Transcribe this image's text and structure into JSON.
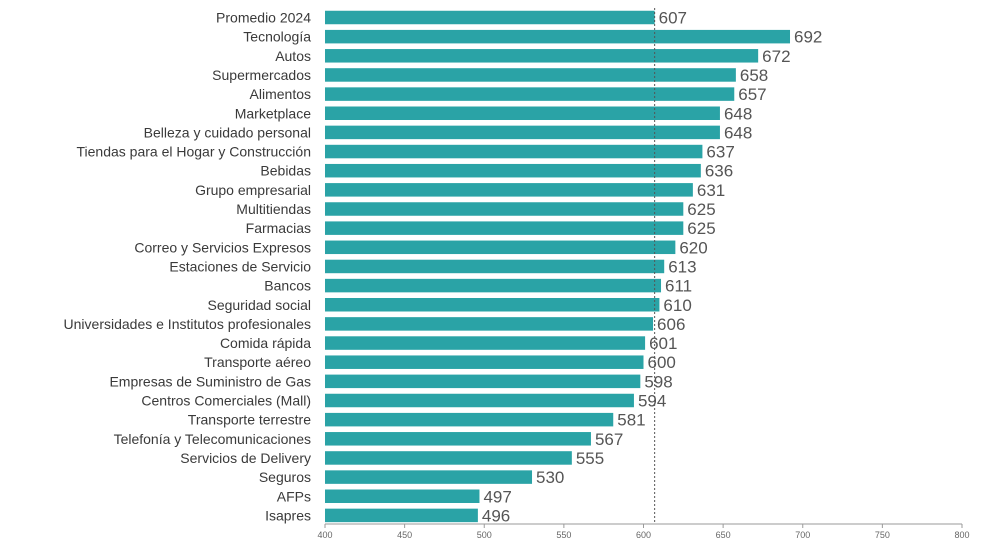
{
  "chart_data": {
    "type": "bar",
    "orientation": "horizontal",
    "categories": [
      "Promedio 2024",
      "Tecnología",
      "Autos",
      "Supermercados",
      "Alimentos",
      "Marketplace",
      "Belleza y cuidado personal",
      "Tiendas para el Hogar y Construcción",
      "Bebidas",
      "Grupo empresarial",
      "Multitiendas",
      "Farmacias",
      "Correo y Servicios Expresos",
      "Estaciones de Servicio",
      "Bancos",
      "Seguridad social",
      "Universidades e Institutos profesionales",
      "Comida rápida",
      "Transporte aéreo",
      "Empresas de Suministro de Gas",
      "Centros Comerciales (Mall)",
      "Transporte terrestre",
      "Telefonía y Telecomunicaciones",
      "Servicios de Delivery",
      "Seguros",
      "AFPs",
      "Isapres"
    ],
    "values": [
      607,
      692,
      672,
      658,
      657,
      648,
      648,
      637,
      636,
      631,
      625,
      625,
      620,
      613,
      611,
      610,
      606,
      601,
      600,
      598,
      594,
      581,
      567,
      555,
      530,
      497,
      496
    ],
    "value_labels": [
      "607",
      "692",
      "672",
      "658",
      "657",
      "648",
      "648",
      "637",
      "636",
      "631",
      "625",
      "625",
      "620",
      "613",
      "611",
      "610",
      "606",
      "601",
      "600",
      "598",
      "594",
      "581",
      "567",
      "555",
      "530",
      "497",
      "496"
    ],
    "xlim": [
      400,
      800
    ],
    "xticks": [
      400,
      450,
      500,
      550,
      600,
      650,
      700,
      750,
      800
    ],
    "xtick_labels": [
      "400",
      "450",
      "500",
      "550",
      "600",
      "650",
      "700",
      "750",
      "800"
    ],
    "reference_line": {
      "value": 607,
      "style": "dotted"
    },
    "grid": false,
    "legend": "none",
    "title": "",
    "xlabel": "",
    "ylabel": "",
    "colors": {
      "bar": "#2aa3a6",
      "reference_line": "#555555",
      "axis": "#9a9a9a"
    }
  }
}
